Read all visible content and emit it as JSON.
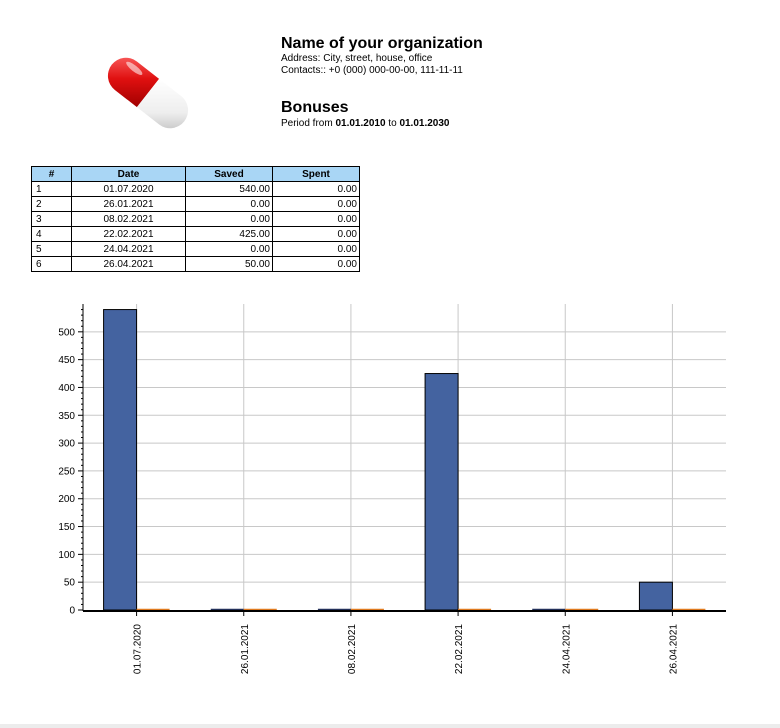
{
  "header": {
    "org_name": "Name of your organization",
    "address": "Address: City, street, house, office",
    "contacts": "Contacts:: +0 (000) 000-00-00, 111-11-11",
    "report_title": "Bonuses",
    "period_prefix": "Period from ",
    "period_from": "01.01.2010",
    "period_mid": " to ",
    "period_to": "01.01.2030",
    "logo_icon": "pill-capsule-icon"
  },
  "table": {
    "headers": [
      "#",
      "Date",
      "Saved",
      "Spent"
    ],
    "rows": [
      [
        "1",
        "01.07.2020",
        "540.00",
        "0.00"
      ],
      [
        "2",
        "26.01.2021",
        "0.00",
        "0.00"
      ],
      [
        "3",
        "08.02.2021",
        "0.00",
        "0.00"
      ],
      [
        "4",
        "22.02.2021",
        "425.00",
        "0.00"
      ],
      [
        "5",
        "24.04.2021",
        "0.00",
        "0.00"
      ],
      [
        "6",
        "26.04.2021",
        "50.00",
        "0.00"
      ]
    ],
    "header_color": "#a9d6f5"
  },
  "chart_data": {
    "type": "bar",
    "categories": [
      "01.07.2020",
      "26.01.2021",
      "08.02.2021",
      "22.02.2021",
      "24.04.2021",
      "26.04.2021"
    ],
    "series": [
      {
        "values": [
          540,
          0,
          0,
          425,
          0,
          50
        ],
        "color": "#4463a0"
      },
      {
        "values": [
          0,
          0,
          0,
          0,
          0,
          0
        ],
        "color": "#e07a1f"
      }
    ],
    "ylim": [
      0,
      550
    ],
    "yticks": [
      0,
      50,
      100,
      150,
      200,
      250,
      300,
      350,
      400,
      450,
      500
    ],
    "grid": true,
    "legend": "none",
    "xlabel": "",
    "ylabel": "",
    "title": ""
  }
}
